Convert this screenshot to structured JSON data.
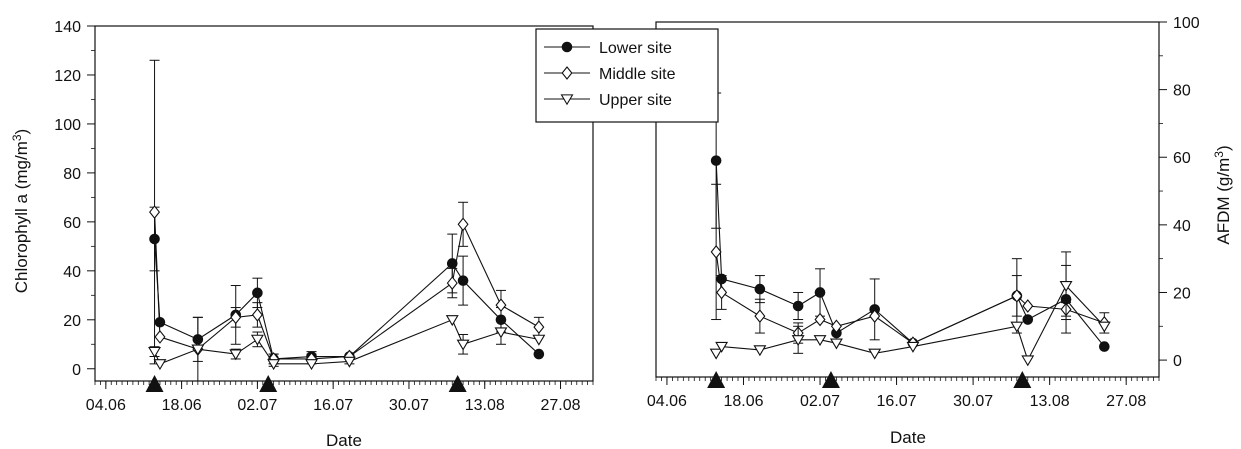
{
  "chart_data": [
    {
      "type": "line",
      "title": "",
      "xlabel": "Date",
      "ylabel": "Chlorophyll a (mg/m3)",
      "ylabel_parts": [
        "Chlorophyll a (mg/m",
        "3",
        ")"
      ],
      "x_ticks": [
        "04.06",
        "18.06",
        "02.07",
        "16.07",
        "30.07",
        "13.08",
        "27.08"
      ],
      "x_range": [
        "2000-06-02",
        "2000-09-02"
      ],
      "ylim": [
        -5,
        140
      ],
      "y_ticks": [
        0,
        20,
        40,
        60,
        80,
        100,
        120,
        140
      ],
      "y_axis_side": "left",
      "grid": false,
      "flood_markers": [
        "2000-06-13",
        "2000-07-04",
        "2000-08-08"
      ],
      "series": [
        {
          "name": "Lower site",
          "marker": "filled-circle",
          "points": [
            {
              "x": "2000-06-13",
              "y": 53,
              "err": 13
            },
            {
              "x": "2000-06-14",
              "y": 19,
              "err": 0
            },
            {
              "x": "2000-06-21",
              "y": 12,
              "err": 9
            },
            {
              "x": "2000-06-28",
              "y": 22,
              "err": 12
            },
            {
              "x": "2000-07-02",
              "y": 31,
              "err": 6
            },
            {
              "x": "2000-07-05",
              "y": 4,
              "err": 2
            },
            {
              "x": "2000-07-12",
              "y": 5,
              "err": 2
            },
            {
              "x": "2000-07-19",
              "y": 5,
              "err": 0
            },
            {
              "x": "2000-08-07",
              "y": 43,
              "err": 12
            },
            {
              "x": "2000-08-09",
              "y": 36,
              "err": 10
            },
            {
              "x": "2000-08-16",
              "y": 20,
              "err": 5
            },
            {
              "x": "2000-08-23",
              "y": 6,
              "err": 0
            }
          ]
        },
        {
          "name": "Middle site",
          "marker": "open-diamond",
          "points": [
            {
              "x": "2000-06-13",
              "y": 64,
              "err": 62
            },
            {
              "x": "2000-06-14",
              "y": 13,
              "err": 0
            },
            {
              "x": "2000-06-21",
              "y": 8,
              "err": 13
            },
            {
              "x": "2000-06-28",
              "y": 21,
              "err": 4
            },
            {
              "x": "2000-07-02",
              "y": 22,
              "err": 5
            },
            {
              "x": "2000-07-05",
              "y": 4,
              "err": 2
            },
            {
              "x": "2000-07-12",
              "y": 4,
              "err": 2
            },
            {
              "x": "2000-07-19",
              "y": 5,
              "err": 0
            },
            {
              "x": "2000-08-07",
              "y": 35,
              "err": 6
            },
            {
              "x": "2000-08-09",
              "y": 59,
              "err": 9
            },
            {
              "x": "2000-08-16",
              "y": 26,
              "err": 6
            },
            {
              "x": "2000-08-23",
              "y": 17,
              "err": 4
            }
          ]
        },
        {
          "name": "Upper site",
          "marker": "open-triangle-down",
          "points": [
            {
              "x": "2000-06-13",
              "y": 7,
              "err": 2
            },
            {
              "x": "2000-06-14",
              "y": 2,
              "err": 0
            },
            {
              "x": "2000-06-21",
              "y": 8,
              "err": 0
            },
            {
              "x": "2000-06-28",
              "y": 6,
              "err": 2
            },
            {
              "x": "2000-07-02",
              "y": 12,
              "err": 3
            },
            {
              "x": "2000-07-05",
              "y": 2,
              "err": 1
            },
            {
              "x": "2000-07-12",
              "y": 2,
              "err": 0
            },
            {
              "x": "2000-07-19",
              "y": 3,
              "err": 1
            },
            {
              "x": "2000-08-07",
              "y": 20,
              "err": 0
            },
            {
              "x": "2000-08-09",
              "y": 10,
              "err": 4
            },
            {
              "x": "2000-08-16",
              "y": 15,
              "err": 5
            },
            {
              "x": "2000-08-23",
              "y": 12,
              "err": 0
            }
          ]
        }
      ]
    },
    {
      "type": "line",
      "title": "",
      "xlabel": "Date",
      "ylabel": "AFDM (g/m3)",
      "ylabel_parts": [
        "AFDM (g/m",
        "3",
        ")"
      ],
      "x_ticks": [
        "04.06",
        "18.06",
        "02.07",
        "16.07",
        "30.07",
        "13.08",
        "27.08"
      ],
      "x_range": [
        "2000-06-02",
        "2000-09-02"
      ],
      "ylim": [
        -5,
        100
      ],
      "y_ticks": [
        0,
        20,
        40,
        60,
        80,
        100
      ],
      "y_axis_side": "right",
      "grid": false,
      "flood_markers": [
        "2000-06-13",
        "2000-07-04",
        "2000-08-08"
      ],
      "series": [
        {
          "name": "Lower site",
          "marker": "filled-circle",
          "points": [
            {
              "x": "2000-06-13",
              "y": 59,
              "err": 20
            },
            {
              "x": "2000-06-14",
              "y": 24,
              "err": 0
            },
            {
              "x": "2000-06-21",
              "y": 21,
              "err": 4
            },
            {
              "x": "2000-06-28",
              "y": 16,
              "err": 4
            },
            {
              "x": "2000-07-02",
              "y": 20,
              "err": 7
            },
            {
              "x": "2000-07-05",
              "y": 8,
              "err": 0
            },
            {
              "x": "2000-07-12",
              "y": 15,
              "err": 9
            },
            {
              "x": "2000-07-19",
              "y": 5,
              "err": 0
            },
            {
              "x": "2000-08-07",
              "y": 19,
              "err": 11
            },
            {
              "x": "2000-08-09",
              "y": 12,
              "err": 0
            },
            {
              "x": "2000-08-16",
              "y": 18,
              "err": 10
            },
            {
              "x": "2000-08-23",
              "y": 4,
              "err": 0
            }
          ]
        },
        {
          "name": "Middle site",
          "marker": "open-diamond",
          "points": [
            {
              "x": "2000-06-13",
              "y": 32,
              "err": 20
            },
            {
              "x": "2000-06-14",
              "y": 20,
              "err": 5
            },
            {
              "x": "2000-06-21",
              "y": 13,
              "err": 5
            },
            {
              "x": "2000-06-28",
              "y": 8,
              "err": 3
            },
            {
              "x": "2000-07-02",
              "y": 12,
              "err": 0
            },
            {
              "x": "2000-07-05",
              "y": 10,
              "err": 0
            },
            {
              "x": "2000-07-12",
              "y": 13,
              "err": 0
            },
            {
              "x": "2000-07-19",
              "y": 5,
              "err": 0
            },
            {
              "x": "2000-08-07",
              "y": 19,
              "err": 6
            },
            {
              "x": "2000-08-09",
              "y": 16,
              "err": 0
            },
            {
              "x": "2000-08-16",
              "y": 15,
              "err": 2
            },
            {
              "x": "2000-08-23",
              "y": 11,
              "err": 3
            }
          ]
        },
        {
          "name": "Upper site",
          "marker": "open-triangle-down",
          "points": [
            {
              "x": "2000-06-13",
              "y": 2,
              "err": 0
            },
            {
              "x": "2000-06-14",
              "y": 4,
              "err": 0
            },
            {
              "x": "2000-06-21",
              "y": 3,
              "err": 0
            },
            {
              "x": "2000-06-28",
              "y": 6,
              "err": 4
            },
            {
              "x": "2000-07-02",
              "y": 6,
              "err": 0
            },
            {
              "x": "2000-07-05",
              "y": 5,
              "err": 0
            },
            {
              "x": "2000-07-12",
              "y": 2,
              "err": 0
            },
            {
              "x": "2000-07-19",
              "y": 4,
              "err": 0
            },
            {
              "x": "2000-08-07",
              "y": 10,
              "err": 0
            },
            {
              "x": "2000-08-09",
              "y": 0,
              "err": 0
            },
            {
              "x": "2000-08-16",
              "y": 22,
              "err": 10
            },
            {
              "x": "2000-08-23",
              "y": 10,
              "err": 0
            }
          ]
        }
      ]
    }
  ],
  "legend": {
    "placement": "top-center",
    "entries": [
      {
        "label": "Lower site",
        "marker": "filled-circle"
      },
      {
        "label": "Middle site",
        "marker": "open-diamond"
      },
      {
        "label": "Upper site",
        "marker": "open-triangle-down"
      }
    ]
  },
  "colors": {
    "ink": "#111111",
    "marker_fill": "#ffffff",
    "background": "#ffffff"
  }
}
